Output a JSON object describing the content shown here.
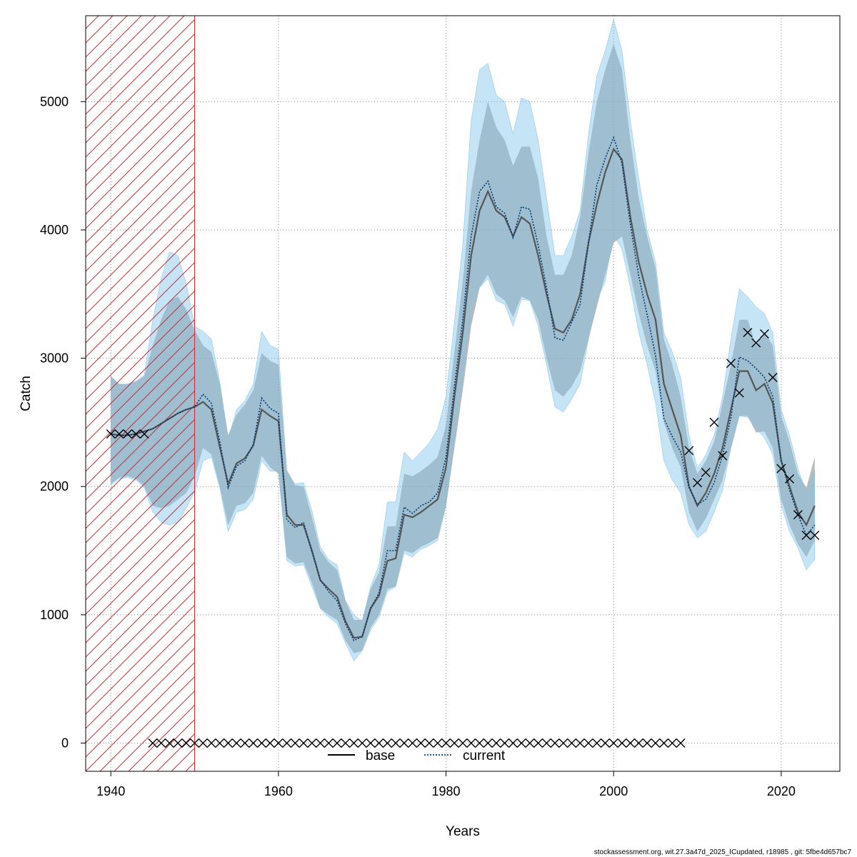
{
  "chart_data": {
    "type": "line",
    "xlabel": "Years",
    "ylabel": "Catch",
    "xlim": [
      1937,
      2027
    ],
    "ylim": [
      -220,
      5670
    ],
    "x_ticks": [
      1940,
      1960,
      1980,
      2000,
      2020
    ],
    "y_ticks": [
      0,
      1000,
      2000,
      3000,
      4000,
      5000
    ],
    "grid": true,
    "hatched_region": {
      "x_start": 1937,
      "x_end": 1950,
      "color": "#e8202a"
    },
    "legend": {
      "position": "bottom-center",
      "entries": [
        {
          "label": "base",
          "style": "solid",
          "color": "#000000"
        },
        {
          "label": "current",
          "style": "dotted",
          "color": "#1f5f8f"
        }
      ]
    },
    "footer": "stockassessment.org, wit.27.3a47d_2025_ICupdated, r18985 , git: 5fbe4d657bc7",
    "colors": {
      "base_band": "#8c8c8c",
      "current_band": "#7fc3e8",
      "base_line": "#555555",
      "current_line": "#003a7a"
    },
    "x": [
      1940,
      1941,
      1942,
      1943,
      1944,
      1945,
      1946,
      1947,
      1948,
      1949,
      1950,
      1951,
      1952,
      1953,
      1954,
      1955,
      1956,
      1957,
      1958,
      1959,
      1960,
      1961,
      1962,
      1963,
      1964,
      1965,
      1966,
      1967,
      1968,
      1969,
      1970,
      1971,
      1972,
      1973,
      1974,
      1975,
      1976,
      1977,
      1978,
      1979,
      1980,
      1981,
      1982,
      1983,
      1984,
      1985,
      1986,
      1987,
      1988,
      1989,
      1990,
      1991,
      1992,
      1993,
      1994,
      1995,
      1996,
      1997,
      1998,
      1999,
      2000,
      2001,
      2002,
      2003,
      2004,
      2005,
      2006,
      2007,
      2008,
      2009,
      2010,
      2011,
      2012,
      2013,
      2014,
      2015,
      2016,
      2017,
      2018,
      2019,
      2020,
      2021,
      2022,
      2023,
      2024
    ],
    "series": [
      {
        "name": "base",
        "values": [
          2410,
          2400,
          2400,
          2410,
          2430,
          2450,
          2490,
          2530,
          2570,
          2600,
          2620,
          2660,
          2600,
          2310,
          2020,
          2180,
          2220,
          2320,
          2600,
          2550,
          2510,
          1780,
          1700,
          1700,
          1500,
          1270,
          1200,
          1140,
          950,
          820,
          830,
          1050,
          1150,
          1420,
          1440,
          1780,
          1760,
          1800,
          1850,
          1900,
          2150,
          2700,
          3200,
          3800,
          4150,
          4300,
          4150,
          4100,
          3950,
          4100,
          4050,
          3800,
          3500,
          3230,
          3200,
          3300,
          3500,
          3900,
          4200,
          4450,
          4630,
          4550,
          4100,
          3750,
          3500,
          3300,
          2800,
          2600,
          2400,
          2000,
          1850,
          1950,
          2100,
          2300,
          2600,
          2900,
          2900,
          2750,
          2800,
          2650,
          2200,
          2000,
          1800,
          1700,
          1850
        ],
        "lower": [
          2020,
          2070,
          2080,
          2060,
          2000,
          1850,
          1830,
          1850,
          1900,
          1950,
          2080,
          2300,
          2250,
          2000,
          1700,
          1850,
          1870,
          1950,
          2240,
          2150,
          2100,
          1450,
          1400,
          1410,
          1250,
          1050,
          1000,
          960,
          800,
          700,
          720,
          900,
          1000,
          1200,
          1220,
          1500,
          1480,
          1530,
          1560,
          1600,
          1850,
          2300,
          2750,
          3250,
          3550,
          3650,
          3500,
          3450,
          3320,
          3480,
          3450,
          3300,
          3000,
          2750,
          2700,
          2780,
          2900,
          3150,
          3400,
          3650,
          3900,
          3950,
          3650,
          3350,
          3100,
          2900,
          2500,
          2300,
          2150,
          1800,
          1650,
          1750,
          1900,
          2050,
          2300,
          2550,
          2550,
          2420,
          2430,
          2300,
          1900,
          1700,
          1550,
          1450,
          1580
        ],
        "upper": [
          2860,
          2800,
          2800,
          2820,
          2860,
          3100,
          3300,
          3450,
          3480,
          3380,
          3220,
          3100,
          3050,
          2800,
          2400,
          2560,
          2640,
          2750,
          3040,
          2980,
          2950,
          2130,
          2010,
          2000,
          1760,
          1500,
          1410,
          1350,
          1110,
          960,
          960,
          1200,
          1330,
          1690,
          1690,
          2100,
          2080,
          2120,
          2170,
          2230,
          2480,
          3050,
          3600,
          4300,
          4700,
          5000,
          4800,
          4700,
          4500,
          4650,
          4650,
          4400,
          3950,
          3650,
          3650,
          3800,
          4100,
          4600,
          5000,
          5250,
          5450,
          5250,
          4700,
          4250,
          3950,
          3700,
          3150,
          2950,
          2700,
          2300,
          2100,
          2200,
          2350,
          2650,
          2950,
          3300,
          3300,
          3100,
          3200,
          3100,
          2550,
          2350,
          2100,
          1990,
          2230
        ]
      },
      {
        "name": "current",
        "values": [
          2410,
          2400,
          2400,
          2410,
          2430,
          2450,
          2490,
          2530,
          2570,
          2600,
          2620,
          2720,
          2650,
          2350,
          1990,
          2160,
          2200,
          2330,
          2690,
          2610,
          2570,
          1740,
          1680,
          1720,
          1490,
          1270,
          1180,
          1110,
          930,
          800,
          830,
          1050,
          1170,
          1500,
          1500,
          1840,
          1790,
          1850,
          1880,
          1950,
          2230,
          2780,
          3300,
          3950,
          4300,
          4380,
          4180,
          4130,
          3940,
          4180,
          4160,
          3880,
          3550,
          3160,
          3140,
          3280,
          3420,
          3900,
          4350,
          4560,
          4720,
          4520,
          4040,
          3640,
          3340,
          3020,
          2530,
          2390,
          2270,
          1990,
          1860,
          1900,
          2030,
          2240,
          2540,
          3010,
          2980,
          2920,
          2850,
          2700,
          2200,
          1970,
          1780,
          1620,
          1700
        ],
        "lower": [
          2010,
          2060,
          2070,
          2050,
          1990,
          1800,
          1720,
          1700,
          1720,
          1830,
          1960,
          2200,
          2230,
          1990,
          1650,
          1800,
          1820,
          1900,
          2200,
          2120,
          2120,
          1420,
          1380,
          1390,
          1220,
          1050,
          980,
          930,
          780,
          640,
          720,
          880,
          980,
          1180,
          1220,
          1480,
          1450,
          1510,
          1540,
          1580,
          1850,
          2360,
          2850,
          3350,
          3550,
          3620,
          3450,
          3420,
          3250,
          3460,
          3450,
          3250,
          2950,
          2620,
          2580,
          2680,
          2800,
          3150,
          3450,
          3600,
          3960,
          3850,
          3550,
          3200,
          2950,
          2650,
          2200,
          2050,
          1950,
          1700,
          1600,
          1650,
          1800,
          1970,
          2300,
          2550,
          2540,
          2450,
          2380,
          2250,
          1850,
          1650,
          1520,
          1350,
          1430
        ],
        "upper": [
          2860,
          2790,
          2800,
          2820,
          2870,
          3300,
          3620,
          3830,
          3800,
          3580,
          3250,
          3210,
          3150,
          2820,
          2370,
          2600,
          2670,
          2800,
          3210,
          3100,
          3070,
          2110,
          2020,
          2030,
          1810,
          1530,
          1430,
          1390,
          1110,
          1000,
          950,
          1220,
          1390,
          1880,
          1880,
          2270,
          2200,
          2270,
          2340,
          2450,
          2700,
          3280,
          3890,
          4850,
          5250,
          5300,
          5050,
          5000,
          4750,
          5030,
          5000,
          4700,
          4250,
          3800,
          3800,
          3950,
          4150,
          4750,
          5200,
          5400,
          5640,
          5400,
          4850,
          4400,
          4000,
          3750,
          3200,
          3050,
          2850,
          2400,
          2140,
          2250,
          2400,
          2700,
          3150,
          3540,
          3480,
          3400,
          3350,
          3200,
          2600,
          2400,
          2140,
          1950,
          2130
        ]
      }
    ],
    "observations": {
      "x": [
        1940,
        1941,
        1942,
        1943,
        1944,
        1945,
        1946,
        1947,
        1948,
        1949,
        1950,
        1951,
        1952,
        1953,
        1954,
        1955,
        1956,
        1957,
        1958,
        1959,
        1960,
        1961,
        1962,
        1963,
        1964,
        1965,
        1966,
        1967,
        1968,
        1969,
        1970,
        1971,
        1972,
        1973,
        1974,
        1975,
        1976,
        1977,
        1978,
        1979,
        1980,
        1981,
        1982,
        1983,
        1984,
        1985,
        1986,
        1987,
        1988,
        1989,
        1990,
        1991,
        1992,
        1993,
        1994,
        1995,
        1996,
        1997,
        1998,
        1999,
        2000,
        2001,
        2002,
        2003,
        2004,
        2005,
        2006,
        2007,
        2008,
        2009,
        2010,
        2011,
        2012,
        2013,
        2014,
        2015,
        2016,
        2017,
        2018,
        2019,
        2020,
        2021,
        2022,
        2023,
        2024
      ],
      "y": [
        2410,
        2410,
        2410,
        2410,
        2410,
        0,
        0,
        0,
        0,
        0,
        0,
        0,
        0,
        0,
        0,
        0,
        0,
        0,
        0,
        0,
        0,
        0,
        0,
        0,
        0,
        0,
        0,
        0,
        0,
        0,
        0,
        0,
        0,
        0,
        0,
        0,
        0,
        0,
        0,
        0,
        0,
        0,
        0,
        0,
        0,
        0,
        0,
        0,
        0,
        0,
        0,
        0,
        0,
        0,
        0,
        0,
        0,
        0,
        0,
        0,
        0,
        0,
        0,
        0,
        0,
        0,
        0,
        0,
        0,
        2280,
        2030,
        2110,
        2500,
        2240,
        2960,
        2730,
        3200,
        3120,
        3190,
        2850,
        2140,
        2060,
        1780,
        1620,
        1620
      ]
    }
  }
}
